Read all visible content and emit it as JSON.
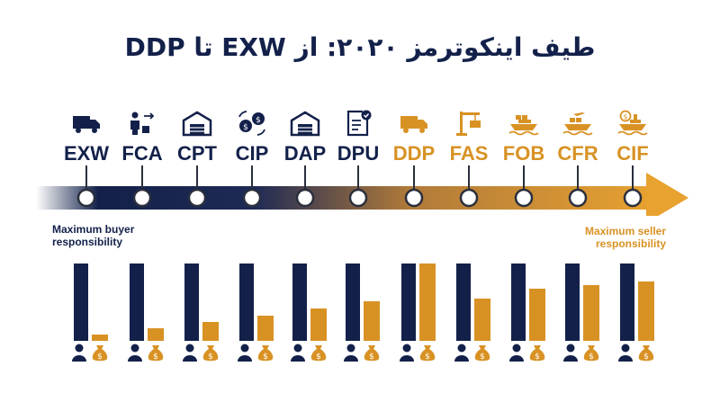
{
  "title": "طیف اینکوترمز ۲۰۲۰: از EXW تا DDP",
  "colors": {
    "buyer": "#13214a",
    "seller": "#d89224"
  },
  "terms": [
    {
      "code": "EXW",
      "icon": "truck-icon",
      "buyer": 100,
      "seller": 8
    },
    {
      "code": "FCA",
      "icon": "worker-handover-icon",
      "buyer": 100,
      "seller": 16
    },
    {
      "code": "CPT",
      "icon": "warehouse-icon",
      "buyer": 100,
      "seller": 25
    },
    {
      "code": "CIP",
      "icon": "currency-exchange-icon",
      "buyer": 100,
      "seller": 33
    },
    {
      "code": "DAP",
      "icon": "warehouse-icon",
      "buyer": 100,
      "seller": 42
    },
    {
      "code": "DPU",
      "icon": "document-check-icon",
      "buyer": 100,
      "seller": 51
    },
    {
      "code": "DDP",
      "icon": "truck-icon",
      "buyer": 100,
      "seller": 100
    },
    {
      "code": "FAS",
      "icon": "crane-icon",
      "buyer": 100,
      "seller": 55
    },
    {
      "code": "FOB",
      "icon": "ship-icon",
      "buyer": 100,
      "seller": 67
    },
    {
      "code": "CFR",
      "icon": "ship-plane-icon",
      "buyer": 100,
      "seller": 72
    },
    {
      "code": "CIF",
      "icon": "ship-money-icon",
      "buyer": 100,
      "seller": 77
    }
  ],
  "labels": {
    "buyer": "Maximum buyer responsibility",
    "seller": "Maximum seller responsibility"
  },
  "legend_icons": {
    "buyer": "person-icon",
    "seller": "money-bag-icon"
  }
}
